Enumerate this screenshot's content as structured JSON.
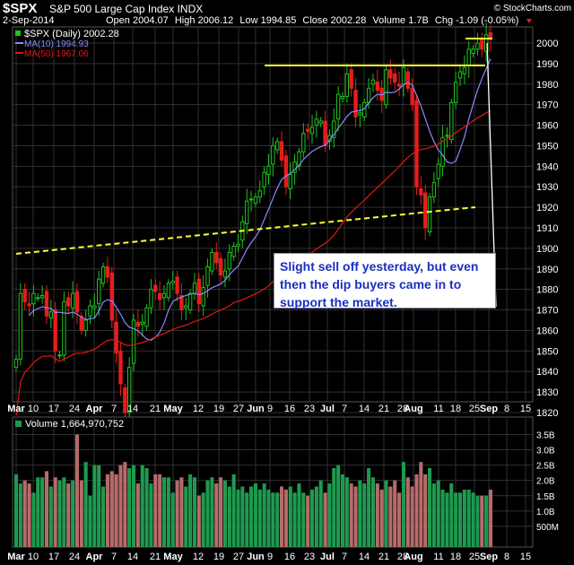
{
  "header": {
    "ticker": "$SPX",
    "name": "S&P 500 Large Cap Index",
    "exchange": "INDX",
    "watermark": "© StockCharts.com",
    "date": "2-Sep-2014",
    "open_label": "Open",
    "open": "2004.07",
    "high_label": "High",
    "high": "2006.12",
    "low_label": "Low",
    "low": "1994.85",
    "close_label": "Close",
    "close": "2002.28",
    "volume_label": "Volume",
    "volume": "1.7B",
    "chg_label": "Chg",
    "chg": "-1.09 (-0.05%)"
  },
  "legend": {
    "main": "$SPX (Daily) 2002.28",
    "ma10": "MA(10) 1994.93",
    "ma50": "MA(50) 1967.06",
    "volume": "Volume 1,664,970,752"
  },
  "annotation": {
    "line1": "Slight sell off yesterday, but even",
    "line2": "then the dip buyers came in to",
    "line3": "support the market."
  },
  "colors": {
    "up": "#1ec41e",
    "down": "#e81c1c",
    "ma10": "#8a8aff",
    "ma50": "#e01818",
    "trend": "#ffff33",
    "vol_up": "#1e9a4f",
    "vol_down": "#b86a6a",
    "grid": "#303030",
    "bg": "#000000"
  },
  "chart_data": [
    {
      "type": "candlestick",
      "title": "$SPX (Daily) 2002.28",
      "ylim": [
        1810,
        2010
      ],
      "y_ticks": [
        1820,
        1830,
        1840,
        1850,
        1860,
        1870,
        1880,
        1890,
        1900,
        1910,
        1920,
        1930,
        1940,
        1950,
        1960,
        1970,
        1980,
        1990,
        2000
      ],
      "x_ticks": [
        "Mar",
        "10",
        "17",
        "24",
        "Apr",
        "7",
        "14",
        "21",
        "May",
        "12",
        "19",
        "27",
        "Jun",
        "9",
        "16",
        "23",
        "Jul",
        "7",
        "14",
        "21",
        "28",
        "Aug",
        "11",
        "18",
        "25",
        "Sep",
        "8",
        "15"
      ],
      "closes": [
        1846,
        1878,
        1874,
        1872,
        1878,
        1876,
        1877,
        1867,
        1869,
        1850,
        1848,
        1874,
        1872,
        1878,
        1869,
        1860,
        1865,
        1872,
        1872,
        1885,
        1891,
        1886,
        1865,
        1849,
        1834,
        1820,
        1842,
        1865,
        1862,
        1864,
        1871,
        1880,
        1879,
        1875,
        1878,
        1883,
        1884,
        1878,
        1870,
        1872,
        1878,
        1883,
        1873,
        1881,
        1891,
        1898,
        1893,
        1887,
        1889,
        1898,
        1901,
        1902,
        1913,
        1923,
        1924,
        1925,
        1928,
        1937,
        1940,
        1950,
        1952,
        1943,
        1930,
        1936,
        1942,
        1947,
        1956,
        1957,
        1959,
        1963,
        1962,
        1950,
        1955,
        1962,
        1975,
        1974,
        1985,
        1978,
        1964,
        1966,
        1971,
        1978,
        1982,
        1977,
        1972,
        1987,
        1983,
        1981,
        1979,
        1988,
        1978,
        1970,
        1930,
        1926,
        1910,
        1925,
        1932,
        1941,
        1954,
        1955,
        1971,
        1981,
        1986,
        1988,
        1997,
        1997,
        2000,
        1997,
        2004,
        2002
      ],
      "ma10_end": 1994.93,
      "ma50_end": 1967.06,
      "trendlines": [
        {
          "style": "dashed",
          "from": [
            "Mar 3",
            1888
          ],
          "to": [
            "Aug 27",
            1913
          ]
        },
        {
          "style": "solid",
          "from": [
            "Jun 9",
            1988
          ],
          "to": [
            "Aug 28",
            1988
          ]
        },
        {
          "style": "solid",
          "from": [
            "Aug 26",
            2002
          ],
          "to": [
            "Sep 2",
            2002
          ]
        }
      ]
    },
    {
      "type": "bar",
      "title": "Volume 1,664,970,752",
      "ylim": [
        0,
        3.8
      ],
      "y_ticks": [
        "500M",
        "1.0B",
        "1.5B",
        "2.0B",
        "2.5B",
        "3.0B",
        "3.5B"
      ],
      "values": [
        2.2,
        1.9,
        2.0,
        1.9,
        1.6,
        2.1,
        2.1,
        2.3,
        1.8,
        2.1,
        2.0,
        2.1,
        1.9,
        2.0,
        3.5,
        2.0,
        2.6,
        1.5,
        2.5,
        2.5,
        1.8,
        2.2,
        2.3,
        2.2,
        2.5,
        2.6,
        2.4,
        2.5,
        1.9,
        2.5,
        2.4,
        1.9,
        2.2,
        2.2,
        2.1,
        2.1,
        1.6,
        2.0,
        2.1,
        1.8,
        2.2,
        2.1,
        1.5,
        1.6,
        2.0,
        2.1,
        1.9,
        2.1,
        2.0,
        1.8,
        2.2,
        1.7,
        1.8,
        1.6,
        1.8,
        1.9,
        1.7,
        1.9,
        1.7,
        1.6,
        1.6,
        1.8,
        1.7,
        1.8,
        1.6,
        1.9,
        1.6,
        1.5,
        1.7,
        1.8,
        2.0,
        1.6,
        1.9,
        2.4,
        2.5,
        2.2,
        2.1,
        1.9,
        1.8,
        2.0,
        1.9,
        2.4,
        2.1,
        1.9,
        1.7,
        2.0,
        1.8,
        2.0,
        1.6,
        2.6,
        2.1,
        1.8,
        2.2,
        2.6,
        2.2,
        2.4,
        1.9,
        2.0,
        1.7,
        1.6,
        1.9,
        1.6,
        1.6,
        1.7,
        1.7,
        1.6,
        1.5,
        1.5,
        1.5,
        1.7
      ]
    }
  ]
}
